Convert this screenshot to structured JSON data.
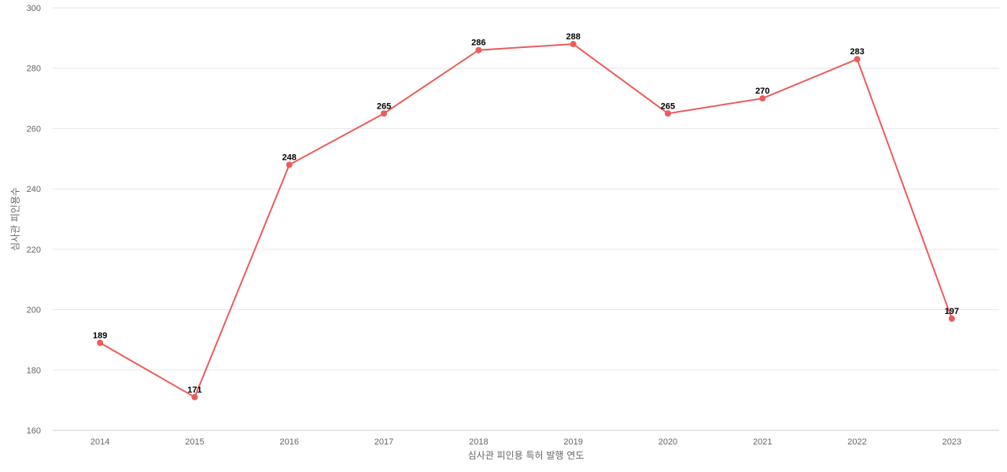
{
  "chart_data": {
    "type": "line",
    "title": "",
    "xlabel": "심사관 피인용 특허 발행 연도",
    "ylabel": "심사관 피인용수",
    "categories": [
      "2014",
      "2015",
      "2016",
      "2017",
      "2018",
      "2019",
      "2020",
      "2021",
      "2022",
      "2023"
    ],
    "series": [
      {
        "values": [
          189,
          171,
          248,
          265,
          286,
          288,
          265,
          270,
          283,
          197
        ],
        "color": "#ec5b5b"
      }
    ],
    "ylim": [
      160,
      300
    ],
    "yticks": [
      160,
      180,
      200,
      220,
      240,
      260,
      280,
      300
    ],
    "grid": true,
    "legend": "none",
    "data_labels": true
  }
}
